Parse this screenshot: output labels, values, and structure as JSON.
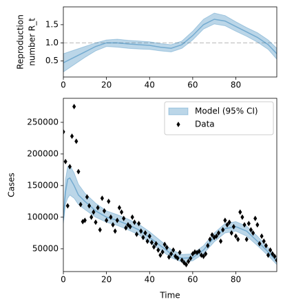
{
  "chart_data": [
    {
      "type": "line",
      "ylabel": [
        "Reproduction",
        "number R_t"
      ],
      "xlim": [
        0,
        99
      ],
      "xticks": [
        0,
        20,
        40,
        60,
        80
      ],
      "ylim": [
        0.06,
        1.99
      ],
      "yticks": [
        0.5,
        {
          "value": 1,
          "label": "1.0"
        },
        1.5
      ],
      "hline": 1,
      "hline_color": "#cccccc",
      "series": [
        {
          "color": "#1f77b4",
          "x": [
            0,
            5,
            10,
            15,
            20,
            25,
            30,
            35,
            40,
            45,
            50,
            55,
            60,
            65,
            70,
            75,
            80,
            85,
            90,
            95,
            99
          ],
          "values": [
            0.45,
            0.6,
            0.75,
            0.9,
            1.0,
            1.0,
            0.97,
            0.95,
            0.93,
            0.88,
            0.85,
            0.95,
            1.2,
            1.5,
            1.65,
            1.6,
            1.45,
            1.3,
            1.15,
            0.95,
            0.7
          ],
          "lower": [
            0.2,
            0.4,
            0.6,
            0.78,
            0.9,
            0.88,
            0.85,
            0.83,
            0.82,
            0.78,
            0.75,
            0.85,
            1.08,
            1.38,
            1.52,
            1.47,
            1.32,
            1.18,
            1.02,
            0.82,
            0.55
          ],
          "upper": [
            0.7,
            0.8,
            0.9,
            1.0,
            1.08,
            1.1,
            1.07,
            1.05,
            1.03,
            0.98,
            0.95,
            1.05,
            1.32,
            1.65,
            1.82,
            1.75,
            1.58,
            1.42,
            1.28,
            1.08,
            0.85
          ]
        }
      ]
    },
    {
      "type": "line",
      "xlabel": "Time",
      "ylabel": [
        "Cases"
      ],
      "xlim": [
        0,
        99
      ],
      "xticks": [
        0,
        20,
        40,
        60,
        80
      ],
      "ylim": [
        14000,
        288000
      ],
      "yticks": [
        50000,
        100000,
        150000,
        200000,
        250000
      ],
      "legend": "upper right",
      "series": [
        {
          "name": "Model (95% CI)",
          "color": "#1f77b4",
          "x": [
            0,
            1,
            2,
            3,
            5,
            7,
            10,
            15,
            20,
            25,
            30,
            35,
            40,
            45,
            50,
            55,
            60,
            65,
            70,
            75,
            80,
            85,
            90,
            95,
            99
          ],
          "values": [
            95000,
            140000,
            160000,
            162000,
            150000,
            135000,
            125000,
            110000,
            100000,
            95000,
            88000,
            80000,
            68000,
            55000,
            42000,
            35000,
            36000,
            48000,
            68000,
            82000,
            85000,
            78000,
            62000,
            45000,
            30000
          ],
          "lower": [
            90000,
            120000,
            130000,
            135000,
            130000,
            120000,
            112000,
            100000,
            92000,
            87000,
            80000,
            72000,
            60000,
            48000,
            36000,
            29000,
            31000,
            42000,
            61000,
            75000,
            78000,
            70000,
            55000,
            39000,
            25000
          ],
          "upper": [
            100000,
            160000,
            180000,
            182000,
            170000,
            152000,
            138000,
            122000,
            110000,
            104000,
            97000,
            89000,
            77000,
            63000,
            49000,
            41000,
            42000,
            55000,
            75000,
            90000,
            93000,
            86000,
            70000,
            52000,
            36000
          ]
        },
        {
          "name": "Data",
          "color": "#000000",
          "marker": "diamond",
          "x": [
            0,
            1,
            2,
            3,
            4,
            5,
            6,
            7,
            8,
            9,
            10,
            11,
            12,
            13,
            14,
            15,
            16,
            17,
            18,
            19,
            20,
            21,
            22,
            23,
            24,
            25,
            26,
            27,
            28,
            29,
            30,
            31,
            32,
            33,
            34,
            35,
            36,
            37,
            38,
            39,
            40,
            41,
            42,
            43,
            44,
            45,
            46,
            47,
            48,
            49,
            50,
            51,
            52,
            53,
            54,
            55,
            56,
            57,
            58,
            59,
            60,
            61,
            62,
            63,
            64,
            65,
            66,
            67,
            68,
            69,
            70,
            71,
            72,
            73,
            74,
            75,
            76,
            77,
            78,
            79,
            80,
            81,
            82,
            83,
            84,
            85,
            86,
            87,
            88,
            89,
            90,
            91,
            92,
            93,
            94,
            95,
            96,
            97,
            98,
            99
          ],
          "values": [
            235000,
            188000,
            118000,
            180000,
            228000,
            275000,
            220000,
            172000,
            120000,
            93000,
            95000,
            132000,
            118000,
            100000,
            108000,
            92000,
            115000,
            80000,
            130000,
            110000,
            95000,
            125000,
            100000,
            88000,
            78000,
            95000,
            115000,
            108000,
            98000,
            83000,
            88000,
            85000,
            100000,
            92000,
            73000,
            90000,
            78000,
            68000,
            75000,
            62000,
            70000,
            60000,
            53000,
            58000,
            48000,
            40000,
            45000,
            57000,
            52000,
            37000,
            42000,
            48000,
            38000,
            35000,
            44000,
            32000,
            28000,
            25000,
            30000,
            35000,
            42000,
            45000,
            44000,
            46000,
            40000,
            38000,
            42000,
            55000,
            65000,
            72000,
            68000,
            70000,
            75000,
            62000,
            80000,
            95000,
            88000,
            92000,
            75000,
            85000,
            70000,
            65000,
            108000,
            100000,
            88000,
            65000,
            90000,
            80000,
            75000,
            98000,
            88000,
            58000,
            70000,
            62000,
            55000,
            40000,
            48000,
            42000,
            38000,
            32000
          ]
        }
      ]
    }
  ]
}
